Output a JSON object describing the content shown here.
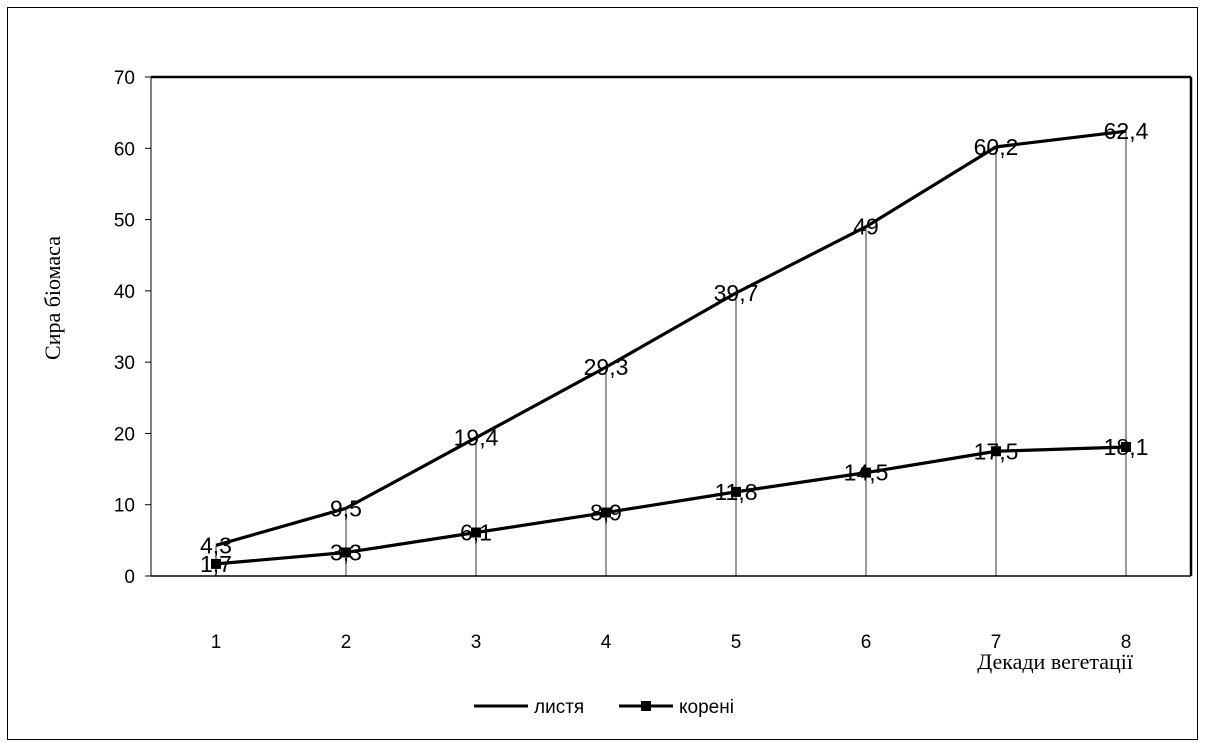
{
  "chart_data": {
    "type": "line",
    "categories": [
      "1",
      "2",
      "3",
      "4",
      "5",
      "6",
      "7",
      "8"
    ],
    "series": [
      {
        "name": "листя",
        "values": [
          4.3,
          9.5,
          19.4,
          29.3,
          39.7,
          49,
          60.2,
          62.4
        ],
        "marker": "none",
        "labels": [
          "4,3",
          "9,5",
          "19,4",
          "29,3",
          "39,7",
          "49",
          "60,2",
          "62,4"
        ]
      },
      {
        "name": "корені",
        "values": [
          1.7,
          3.3,
          6.1,
          8.9,
          11.8,
          14.5,
          17.5,
          18.1
        ],
        "marker": "square",
        "labels": [
          "1,7",
          "3,3",
          "6,1",
          "8,9",
          "11,8",
          "14,5",
          "17,5",
          "18,1"
        ]
      }
    ],
    "ylabel": "Сира біомаса",
    "xlabel": "Декади вегетації",
    "ylim": [
      0,
      70
    ],
    "yticks": [
      "0",
      "10",
      "20",
      "30",
      "40",
      "50",
      "60",
      "70"
    ],
    "drop_lines": true,
    "legend": "bottom",
    "color": "#000000"
  }
}
